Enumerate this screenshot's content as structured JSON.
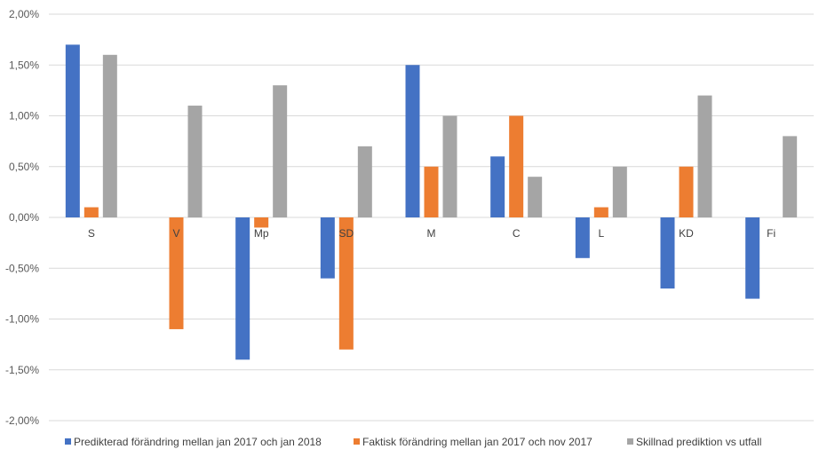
{
  "chart_data": {
    "type": "bar",
    "title": "",
    "xlabel": "",
    "ylabel": "",
    "ylim": [
      -2.0,
      2.0
    ],
    "ytick_step": 0.5,
    "ytick_labels": [
      "2,00%",
      "1,50%",
      "1,00%",
      "0,50%",
      "0,00%",
      "-0,50%",
      "-1,00%",
      "-1,50%",
      "-2,00%"
    ],
    "grid": true,
    "legend_position": "bottom",
    "categories": [
      "S",
      "V",
      "Mp",
      "SD",
      "M",
      "C",
      "L",
      "KD",
      "Fi"
    ],
    "series": [
      {
        "name": "Predikterad förändring mellan jan 2017 och jan 2018",
        "color": "#4472C4",
        "values": [
          1.7,
          0.0,
          -1.4,
          -0.6,
          1.5,
          0.6,
          -0.4,
          -0.7,
          -0.8
        ]
      },
      {
        "name": "Faktisk förändring mellan jan 2017 och nov 2017",
        "color": "#ED7D31",
        "values": [
          0.1,
          -1.1,
          -0.1,
          -1.3,
          0.5,
          1.0,
          0.1,
          0.5,
          0.0
        ]
      },
      {
        "name": "Skillnad prediktion vs utfall",
        "color": "#A5A5A5",
        "values": [
          1.6,
          1.1,
          1.3,
          0.7,
          1.0,
          0.4,
          0.5,
          1.2,
          0.8
        ]
      }
    ]
  }
}
